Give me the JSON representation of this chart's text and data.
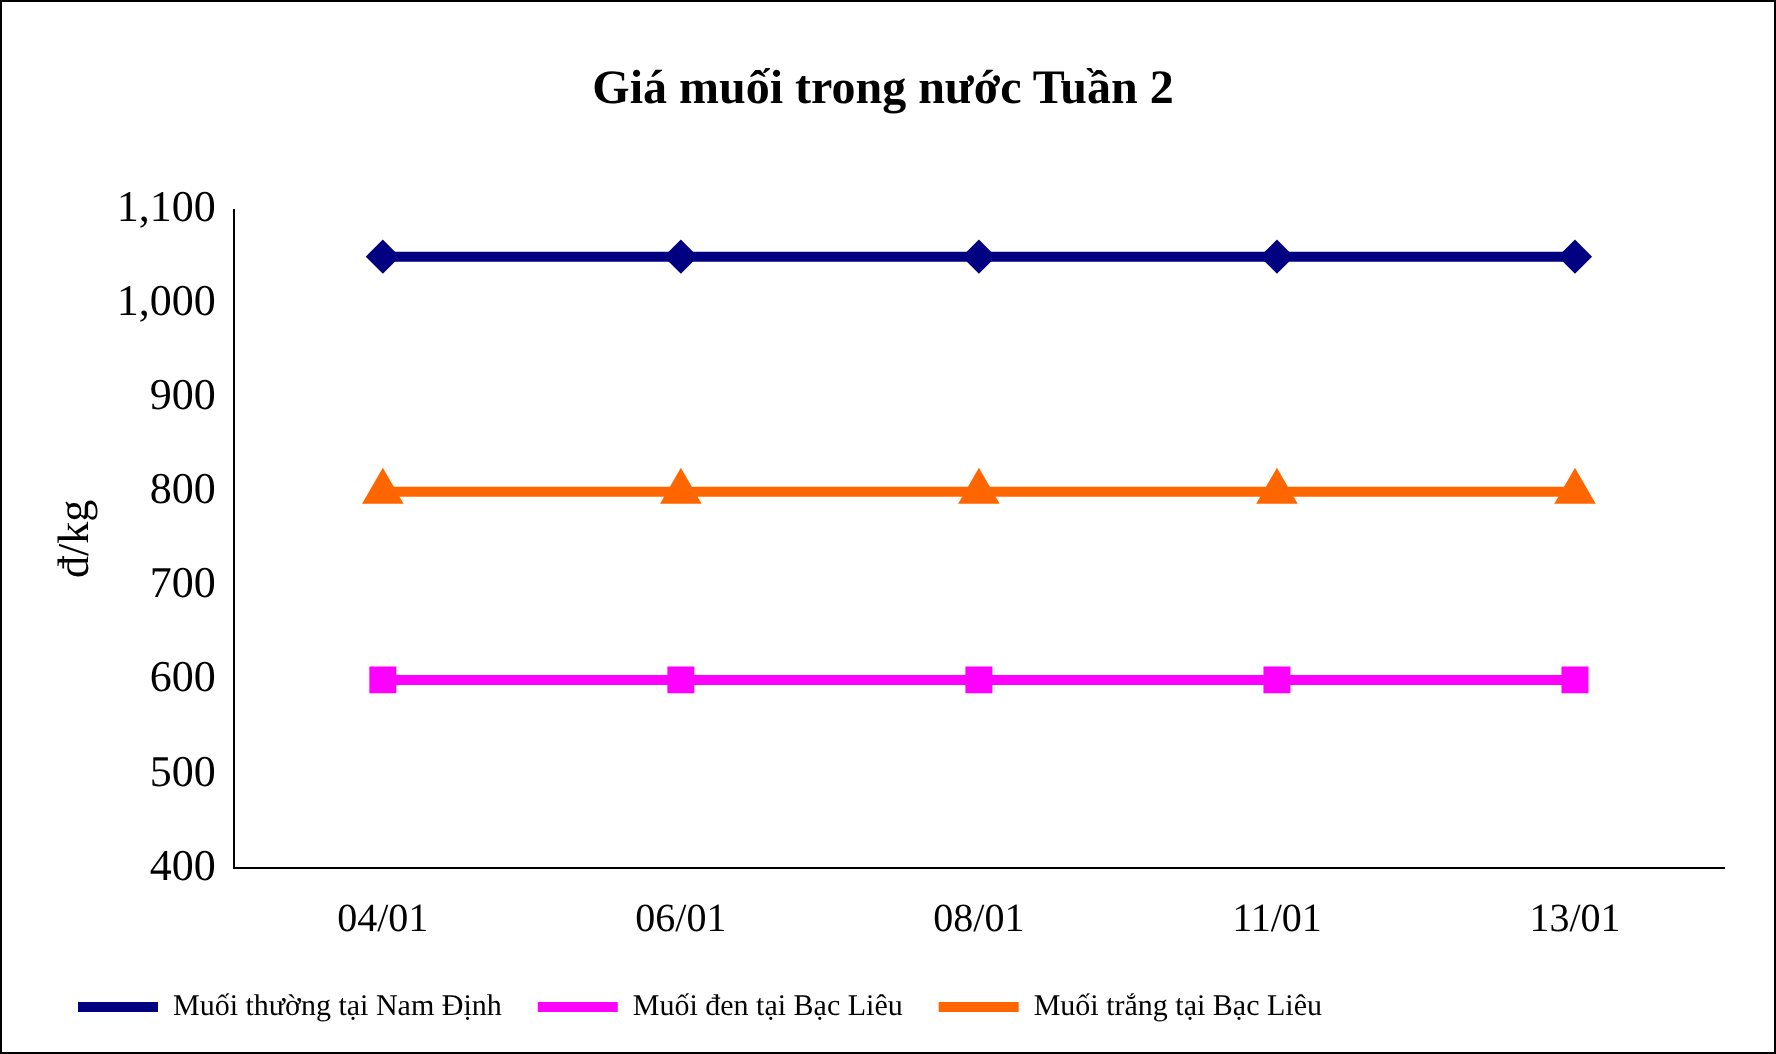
{
  "chart_data": {
    "type": "line",
    "title": "Giá muối trong nước Tuần 2",
    "ylabel": "đ/kg",
    "categories": [
      "04/01",
      "06/01",
      "08/01",
      "11/01",
      "13/01"
    ],
    "series": [
      {
        "name": "Muối thường tại Nam Định",
        "color": "#000080",
        "marker": "diamond",
        "values": [
          1050,
          1050,
          1050,
          1050,
          1050
        ]
      },
      {
        "name": "Muối đen tại Bạc Liêu",
        "color": "#ff00ff",
        "marker": "square",
        "values": [
          600,
          600,
          600,
          600,
          600
        ]
      },
      {
        "name": "Muối trắng tại Bạc Liêu",
        "color": "#ff6600",
        "marker": "triangle",
        "values": [
          800,
          800,
          800,
          800,
          800
        ]
      }
    ],
    "ylim": [
      400,
      1100
    ],
    "yticks": [
      400,
      500,
      600,
      700,
      800,
      900,
      {
        "value": 1000,
        "label": "1,000"
      },
      {
        "value": 1100,
        "label": "1,100"
      }
    ],
    "grid": false,
    "legend": "bottom"
  }
}
